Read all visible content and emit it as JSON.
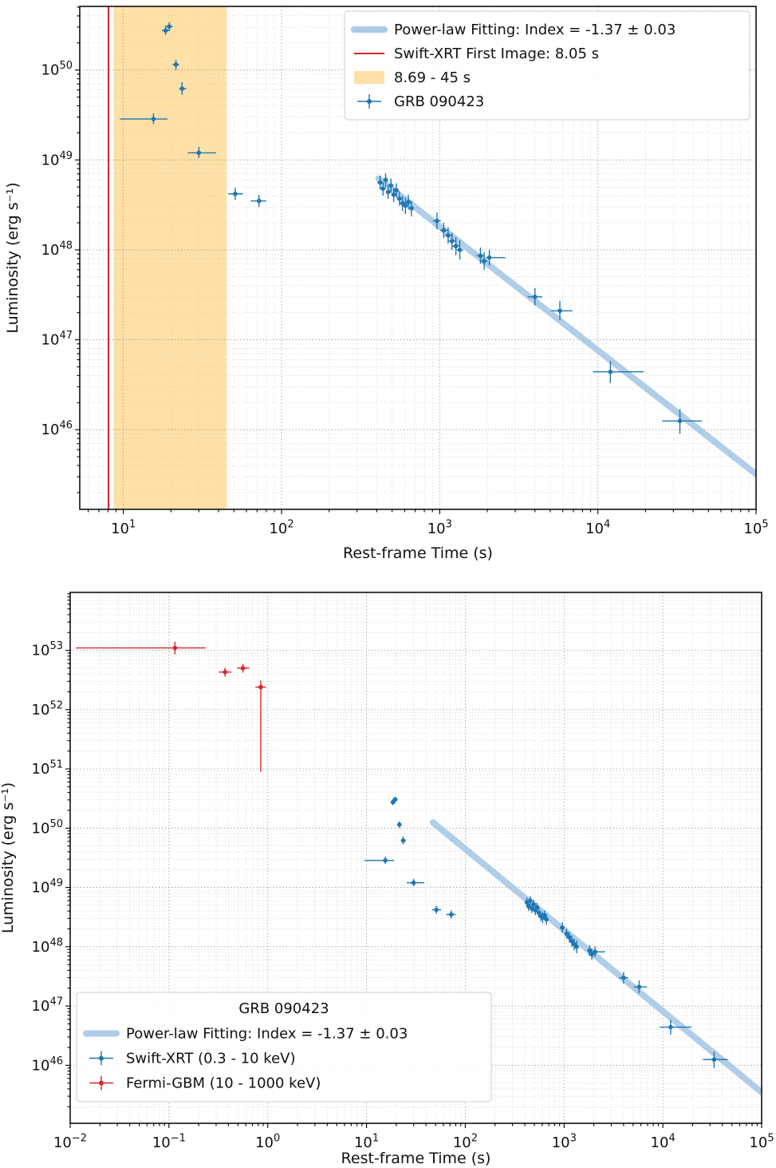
{
  "page": {
    "background": "#ffffff"
  },
  "chart_data": {
    "datasets": {
      "swift_xrt": [
        [
          15.5,
          9.5,
          19,
          2.85e+49,
          2.5e+49,
          3.3e+49
        ],
        [
          18.5,
          17.5,
          19.5,
          2.75e+50,
          2.45e+50,
          3.1e+50
        ],
        [
          19.5,
          18.5,
          20.5,
          3.05e+50,
          2.7e+50,
          3.4e+50
        ],
        [
          21.5,
          20.5,
          22.5,
          1.15e+50,
          1e+50,
          1.3e+50
        ],
        [
          23.5,
          22.5,
          25,
          6.2e+49,
          5.3e+49,
          7.3e+49
        ],
        [
          30,
          25.5,
          38.5,
          1.2e+49,
          1.05e+49,
          1.4e+49
        ],
        [
          51,
          46,
          57,
          4.2e+48,
          3.6e+48,
          4.9e+48
        ],
        [
          72,
          64,
          80,
          3.5e+48,
          3e+48,
          4.1e+48
        ],
        [
          420,
          403,
          438,
          5.6e+48,
          4.7e+48,
          6.7e+48
        ],
        [
          438,
          422,
          455,
          4.8e+48,
          4e+48,
          5.7e+48
        ],
        [
          455,
          440,
          472,
          6e+48,
          5e+48,
          7.1e+48
        ],
        [
          472,
          456,
          490,
          4.4e+48,
          3.7e+48,
          5.3e+48
        ],
        [
          492,
          475,
          509,
          5.2e+48,
          4.3e+48,
          6.2e+48
        ],
        [
          512,
          494,
          530,
          4.1e+48,
          3.4e+48,
          4.9e+48
        ],
        [
          532,
          514,
          551,
          4.6e+48,
          3.8e+48,
          5.5e+48
        ],
        [
          556,
          537,
          576,
          3.7e+48,
          3.1e+48,
          4.5e+48
        ],
        [
          581,
          561,
          602,
          3.3e+48,
          2.7e+48,
          4e+48
        ],
        [
          607,
          586,
          629,
          3.1e+48,
          2.5e+48,
          3.8e+48
        ],
        [
          634,
          612,
          657,
          3.4e+48,
          2.8e+48,
          4.1e+48
        ],
        [
          663,
          640,
          688,
          2.9e+48,
          2.35e+48,
          3.5e+48
        ],
        [
          960,
          905,
          1015,
          2.1e+48,
          1.7e+48,
          2.6e+48
        ],
        [
          1060,
          1005,
          1115,
          1.65e+48,
          1.35e+48,
          2e+48
        ],
        [
          1130,
          1075,
          1185,
          1.45e+48,
          1.18e+48,
          1.78e+48
        ],
        [
          1195,
          1140,
          1255,
          1.25e+48,
          1e+48,
          1.55e+48
        ],
        [
          1265,
          1205,
          1330,
          1.1e+48,
          8.7e+47,
          1.38e+48
        ],
        [
          1340,
          1275,
          1405,
          1e+48,
          7.8e+47,
          1.28e+48
        ],
        [
          1810,
          1715,
          1905,
          8.6e+47,
          7e+47,
          1.06e+48
        ],
        [
          1910,
          1815,
          2010,
          7.5e+47,
          6e+47,
          9.4e+47
        ],
        [
          2060,
          1950,
          2600,
          8.2e+47,
          6.7e+47,
          1e+48
        ],
        [
          4000,
          3600,
          4450,
          3e+47,
          2.4e+47,
          3.75e+47
        ],
        [
          5750,
          5050,
          6900,
          2.1e+47,
          1.65e+47,
          2.7e+47
        ],
        [
          12000,
          9300,
          19500,
          4.4e+46,
          3.3e+46,
          5.8e+46
        ],
        [
          33000,
          25500,
          45500,
          1.25e+46,
          9e+45,
          1.7e+46
        ]
      ],
      "fermi_gbm": [
        [
          0.115,
          0.0115,
          0.235,
          1.1e+53,
          8.5e+52,
          1.4e+53
        ],
        [
          0.37,
          0.32,
          0.43,
          4.3e+52,
          3.6e+52,
          5.1e+52
        ],
        [
          0.56,
          0.49,
          0.65,
          5e+52,
          4.2e+52,
          5.9e+52
        ],
        [
          0.85,
          0.75,
          0.96,
          2.4e+52,
          9e+50,
          3.1e+52
        ]
      ]
    },
    "charts": [
      {
        "id": "top",
        "type": "scatter",
        "xlabel": "Rest-frame Time (s)",
        "ylabel": "Luminosity (erg s⁻¹)",
        "xscale": "log",
        "yscale": "log",
        "xlim": [
          5.3,
          100000
        ],
        "ylim": [
          1.3e+45,
          5.1e+50
        ],
        "xtick_exponents": [
          1,
          2,
          3,
          4,
          5
        ],
        "ytick_exponents": [
          46,
          47,
          48,
          49,
          50
        ],
        "grid": true,
        "vline": {
          "x": 8.05,
          "color": "#d62728",
          "label": "Swift-XRT First Image: 8.05 s"
        },
        "span": {
          "x1": 8.69,
          "x2": 45,
          "color": "#ffe0a6",
          "label": "8.69 - 45 s"
        },
        "fit": {
          "label": "Power-law Fitting: Index = -1.37 ± 0.03",
          "index": -1.37,
          "index_err": 0.03,
          "color": "#a9c9e6",
          "x": [
            410,
            100000
          ],
          "y": [
            6.2e+48,
            3.2e+45
          ]
        },
        "series": [
          {
            "name": "GRB 090423",
            "dataset": "swift_xrt",
            "color": "#1f77b4"
          }
        ],
        "legend": {
          "title": "",
          "position": "top-right",
          "items": [
            {
              "swatch": "thickline",
              "color": "#a9c9e6",
              "label": "Power-law Fitting: Index = -1.37 ± 0.03"
            },
            {
              "swatch": "line",
              "color": "#d62728",
              "label": "Swift-XRT First Image: 8.05 s"
            },
            {
              "swatch": "patch",
              "color": "#ffe0a6",
              "label": "8.69 - 45 s"
            },
            {
              "swatch": "point",
              "color": "#1f77b4",
              "label": "GRB 090423"
            }
          ]
        }
      },
      {
        "id": "bottom",
        "type": "scatter",
        "xlabel": "Rest-frame Time (s)",
        "ylabel": "Luminosity (erg s⁻¹)",
        "xscale": "log",
        "yscale": "log",
        "xlim": [
          0.01,
          100000
        ],
        "ylim": [
          1.05e+45,
          9.5e+53
        ],
        "xtick_exponents": [
          -2,
          -1,
          0,
          1,
          2,
          3,
          4,
          5
        ],
        "ytick_exponents": [
          46,
          47,
          48,
          49,
          50,
          51,
          52,
          53
        ],
        "grid": true,
        "fit": {
          "label": "Power-law Fitting: Index = -1.37 ± 0.03",
          "index": -1.37,
          "index_err": 0.03,
          "color": "#a9c9e6",
          "x": [
            47,
            100000
          ],
          "y": [
            1.25e+50,
            3.5e+45
          ]
        },
        "series": [
          {
            "name": "Swift-XRT  (0.3 - 10 keV)",
            "dataset": "swift_xrt",
            "color": "#1f77b4"
          },
          {
            "name": "Fermi-GBM  (10 - 1000 keV)",
            "dataset": "fermi_gbm",
            "color": "#d62728"
          }
        ],
        "legend": {
          "title": "GRB 090423",
          "position": "bottom-left",
          "items": [
            {
              "swatch": "thickline",
              "color": "#a9c9e6",
              "label": "Power-law Fitting: Index = -1.37 ± 0.03"
            },
            {
              "swatch": "point",
              "color": "#1f77b4",
              "label": "Swift-XRT  (0.3 - 10 keV)"
            },
            {
              "swatch": "point",
              "color": "#d62728",
              "label": "Fermi-GBM  (10 - 1000 keV)"
            }
          ]
        }
      }
    ]
  }
}
